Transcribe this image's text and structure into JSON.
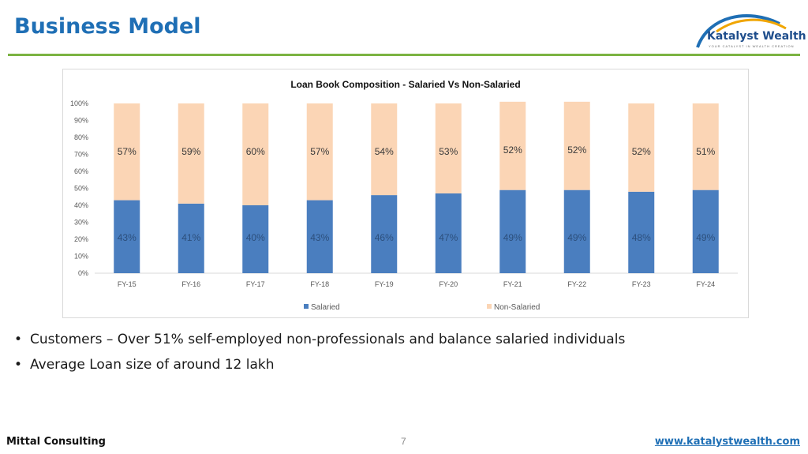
{
  "page": {
    "title": "Business Model",
    "bullets": [
      "Customers – Over 51% self-employed non-professionals and balance salaried individuals",
      "Average Loan size of around 12 lakh"
    ],
    "footer_left": "Mittal Consulting",
    "page_number": "7",
    "footer_right": "www.katalystwealth.com"
  },
  "logo": {
    "name": "Katalyst Wealth",
    "tagline": "YOUR CATALYST IN WEALTH CREATION",
    "colors": {
      "text": "#1f4e8c",
      "arc_blue": "#1f6fb5",
      "arc_gold": "#f0a500"
    }
  },
  "chart_data": {
    "type": "bar",
    "stacked": true,
    "percent": true,
    "title": "Loan Book Composition - Salaried Vs Non-Salaried",
    "categories": [
      "FY-15",
      "FY-16",
      "FY-17",
      "FY-18",
      "FY-19",
      "FY-20",
      "FY-21",
      "FY-22",
      "FY-23",
      "FY-24"
    ],
    "series": [
      {
        "name": "Salaried",
        "color": "#4a7ebf",
        "values": [
          43,
          41,
          40,
          43,
          46,
          47,
          49,
          49,
          48,
          49
        ],
        "labels": [
          "43%",
          "41%",
          "40%",
          "43%",
          "46%",
          "47%",
          "49%",
          "49%",
          "48%",
          "49%"
        ]
      },
      {
        "name": "Non-Salaried",
        "color": "#fbd5b5",
        "values": [
          57,
          59,
          60,
          57,
          54,
          53,
          52,
          52,
          52,
          51
        ],
        "labels": [
          "57%",
          "59%",
          "60%",
          "57%",
          "54%",
          "53%",
          "52%",
          "52%",
          "52%",
          "51%"
        ]
      }
    ],
    "ylim": [
      0,
      100
    ],
    "yticks": [
      "0%",
      "10%",
      "20%",
      "30%",
      "40%",
      "50%",
      "60%",
      "70%",
      "80%",
      "90%",
      "100%"
    ],
    "grid": false,
    "legend": "bottom"
  }
}
